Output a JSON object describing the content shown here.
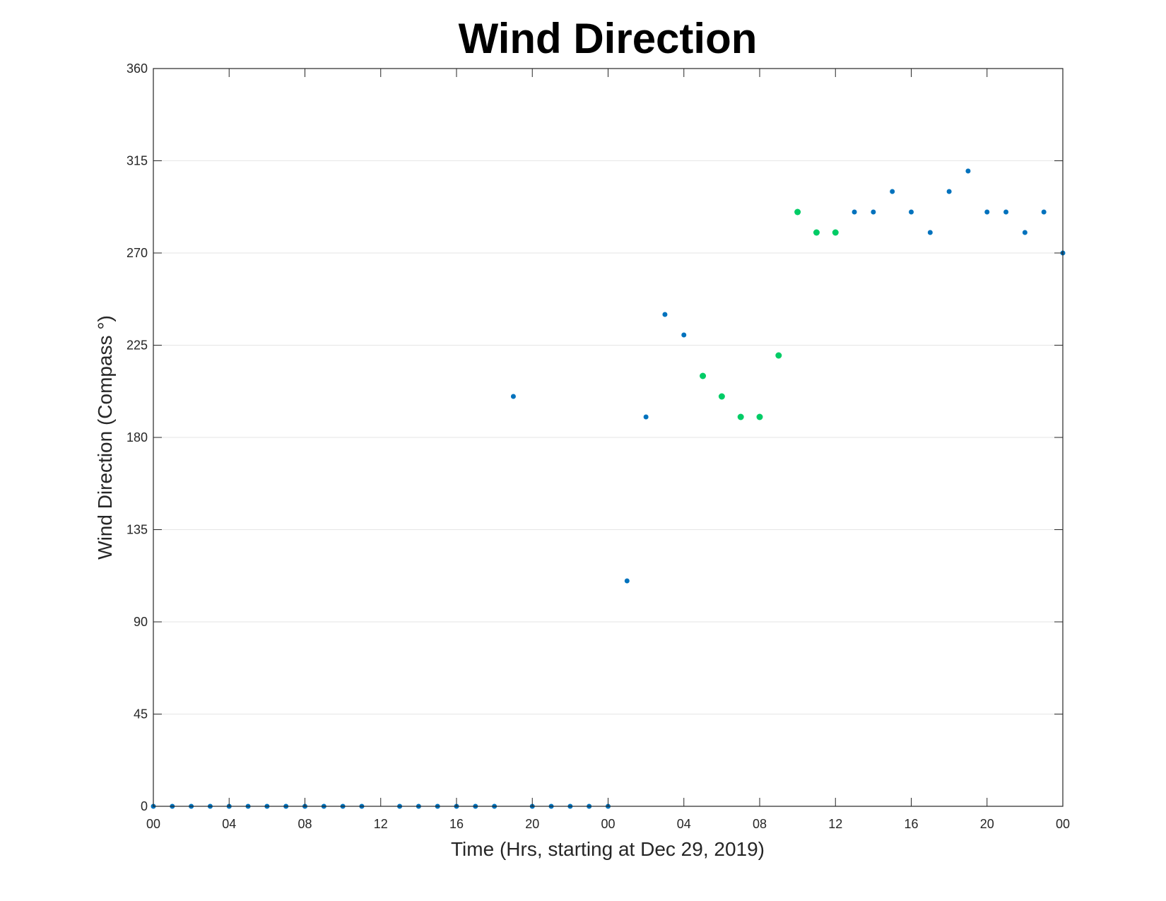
{
  "chart_data": {
    "type": "scatter",
    "title": "Wind Direction",
    "xlabel": "Time (Hrs, starting at Dec 29, 2019)",
    "ylabel": "Wind Direction (Compass °)",
    "ylim": [
      0,
      360
    ],
    "yticks": [
      0,
      45,
      90,
      135,
      180,
      225,
      270,
      315,
      360
    ],
    "xlim": [
      "2019-12-29 00:00",
      "2019-12-31 00:00"
    ],
    "xticks": [
      "00",
      "04",
      "08",
      "12",
      "16",
      "20",
      "00",
      "04",
      "08",
      "12",
      "16",
      "20",
      "00"
    ],
    "grid": "horizontal",
    "colors": {
      "primary": "#0072BD",
      "highlight": "#00CC66",
      "axis": "#262626",
      "grid": "#E6E6E6"
    },
    "series": [
      {
        "color": "#0072BD",
        "points": [
          [
            "2019-12-29 00:00",
            0
          ],
          [
            "2019-12-29 01:00",
            0
          ],
          [
            "2019-12-29 02:00",
            0
          ],
          [
            "2019-12-29 03:00",
            0
          ],
          [
            "2019-12-29 04:00",
            0
          ],
          [
            "2019-12-29 05:00",
            0
          ],
          [
            "2019-12-29 06:00",
            0
          ],
          [
            "2019-12-29 07:00",
            0
          ],
          [
            "2019-12-29 08:00",
            0
          ],
          [
            "2019-12-29 09:00",
            0
          ],
          [
            "2019-12-29 10:00",
            0
          ],
          [
            "2019-12-29 11:00",
            0
          ],
          [
            "2019-12-29 13:00",
            0
          ],
          [
            "2019-12-29 14:00",
            0
          ],
          [
            "2019-12-29 15:00",
            0
          ],
          [
            "2019-12-29 16:00",
            0
          ],
          [
            "2019-12-29 17:00",
            0
          ],
          [
            "2019-12-29 18:00",
            0
          ],
          [
            "2019-12-29 19:00",
            200
          ],
          [
            "2019-12-29 20:00",
            0
          ],
          [
            "2019-12-29 21:00",
            0
          ],
          [
            "2019-12-29 22:00",
            0
          ],
          [
            "2019-12-29 23:00",
            0
          ],
          [
            "2019-12-30 00:00",
            0
          ],
          [
            "2019-12-30 01:00",
            110
          ],
          [
            "2019-12-30 02:00",
            190
          ],
          [
            "2019-12-30 03:00",
            240
          ],
          [
            "2019-12-30 04:00",
            230
          ],
          [
            "2019-12-30 13:00",
            290
          ],
          [
            "2019-12-30 14:00",
            290
          ],
          [
            "2019-12-30 15:00",
            300
          ],
          [
            "2019-12-30 16:00",
            290
          ],
          [
            "2019-12-30 17:00",
            280
          ],
          [
            "2019-12-30 18:00",
            300
          ],
          [
            "2019-12-30 19:00",
            310
          ],
          [
            "2019-12-30 20:00",
            290
          ],
          [
            "2019-12-30 21:00",
            290
          ],
          [
            "2019-12-30 22:00",
            280
          ],
          [
            "2019-12-30 23:00",
            290
          ],
          [
            "2019-12-31 00:00",
            270
          ]
        ]
      },
      {
        "color": "#00CC66",
        "points": [
          [
            "2019-12-30 05:00",
            210
          ],
          [
            "2019-12-30 06:00",
            200
          ],
          [
            "2019-12-30 07:00",
            190
          ],
          [
            "2019-12-30 08:00",
            190
          ],
          [
            "2019-12-30 09:00",
            220
          ],
          [
            "2019-12-30 10:00",
            290
          ],
          [
            "2019-12-30 11:00",
            280
          ],
          [
            "2019-12-30 12:00",
            280
          ]
        ]
      }
    ]
  }
}
